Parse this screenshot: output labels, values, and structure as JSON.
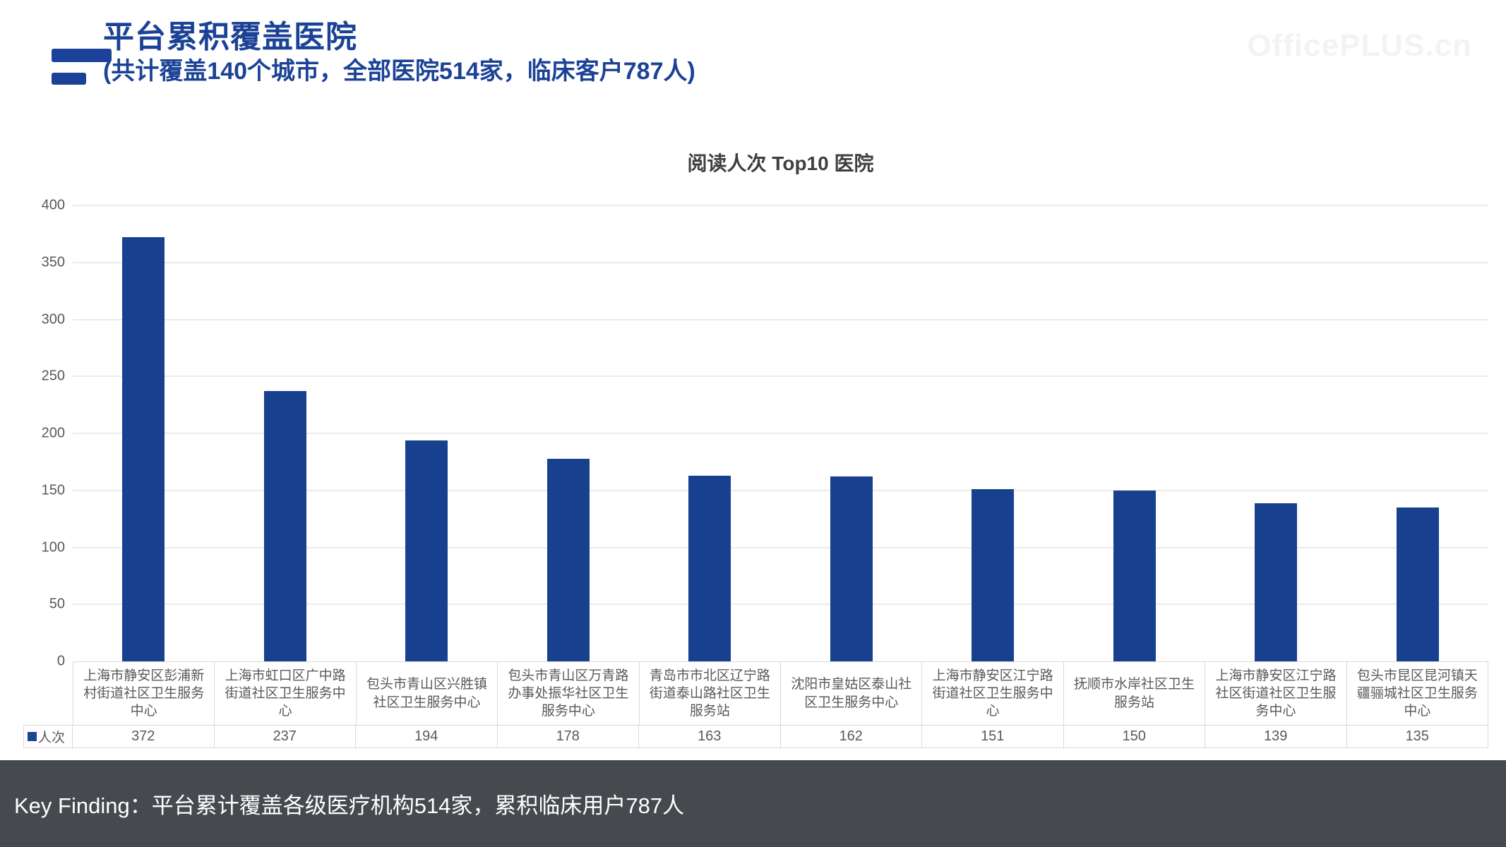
{
  "header": {
    "title": "平台累积覆盖医院",
    "subtitle": "(共计覆盖140个城市，全部医院514家，临床客户787人)",
    "watermark": "OfficePLUS.cn"
  },
  "chart_data": {
    "type": "bar",
    "title": "阅读人次 Top10 医院",
    "legend": "人次",
    "categories": [
      "上海市静安区彭浦新村街道社区卫生服务中心",
      "上海市虹口区广中路街道社区卫生服务中心",
      "包头市青山区兴胜镇社区卫生服务中心",
      "包头市青山区万青路办事处振华社区卫生服务中心",
      "青岛市市北区辽宁路街道泰山路社区卫生服务站",
      "沈阳市皇姑区泰山社区卫生服务中心",
      "上海市静安区江宁路街道社区卫生服务中心",
      "抚顺市水岸社区卫生服务站",
      "上海市静安区江宁路社区街道社区卫生服务中心",
      "包头市昆区昆河镇天疆骊城社区卫生服务中心"
    ],
    "values": [
      372,
      237,
      194,
      178,
      163,
      162,
      151,
      150,
      139,
      135
    ],
    "ylim": [
      0,
      400
    ],
    "yticks": [
      0,
      50,
      100,
      150,
      200,
      250,
      300,
      350,
      400
    ],
    "grid": true,
    "legend_position": "bottom-left-of-data-table",
    "bar_color": "#17418F"
  },
  "footer": {
    "key_finding": "Key Finding：平台累计覆盖各级医疗机构514家，累积临床用户787人"
  },
  "colors": {
    "accent_blue": "#1B4296",
    "bar_blue": "#17418F",
    "footer_bg": "#46494E",
    "axis_text": "#595959",
    "table_border": "#D9D9D9"
  }
}
